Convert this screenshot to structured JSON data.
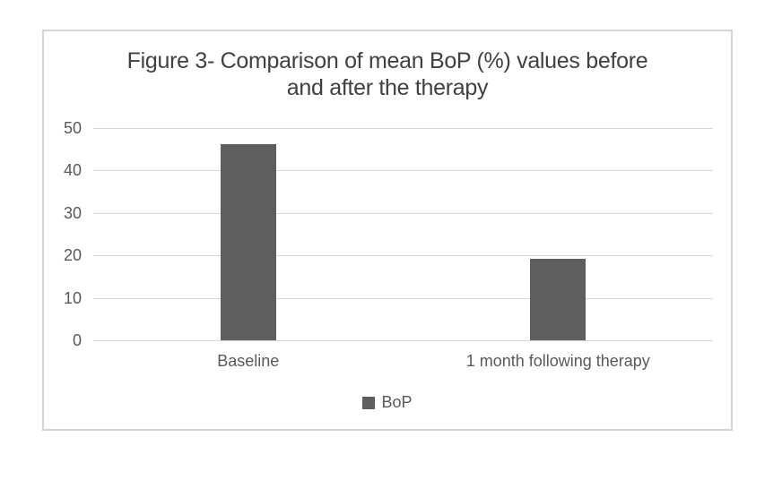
{
  "chart_data": {
    "type": "bar",
    "title": "Figure 3- Comparison of mean BoP (%) values before and after the therapy",
    "title_lines": [
      "Figure 3- Comparison of mean BoP (%) values before",
      "and after the therapy"
    ],
    "categories": [
      "Baseline",
      "1 month following therapy"
    ],
    "series": [
      {
        "name": "BoP",
        "values": [
          46.3,
          19.2
        ]
      }
    ],
    "xlabel": "",
    "ylabel": "",
    "ylim": [
      0,
      50
    ],
    "yticks": [
      0,
      10,
      20,
      30,
      40,
      50
    ],
    "grid": true,
    "legend_position": "bottom",
    "colors": {
      "bar": "#5e5e5e",
      "gridline": "#d7d7d7",
      "frame_border": "#d5d5d5",
      "title_text": "#404040",
      "axis_text": "#595959",
      "background": "#ffffff"
    }
  }
}
